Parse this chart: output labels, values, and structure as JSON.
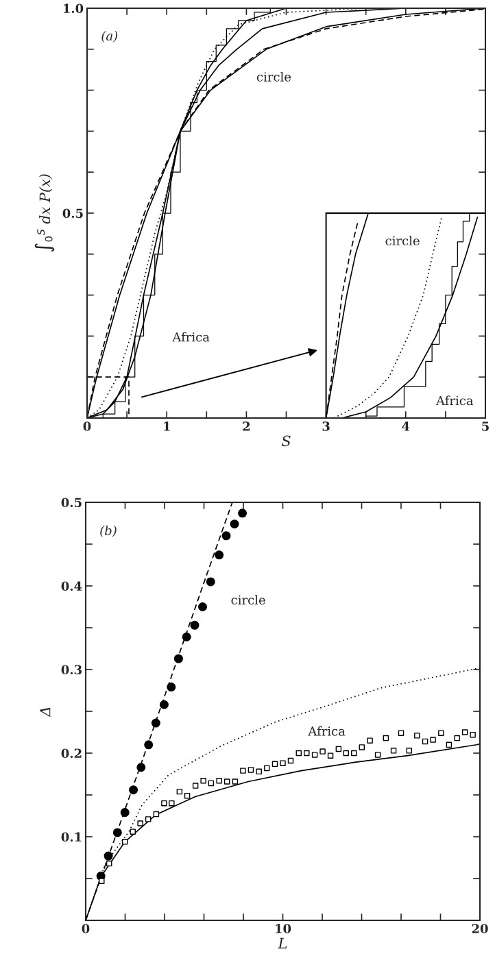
{
  "chart_data": [
    {
      "type": "line",
      "xlabel": "S",
      "ylabel": "∫$_{0}$$^{S}$ dx P(x)",
      "xlim": [
        0,
        5
      ],
      "ylim": [
        0,
        1.0
      ],
      "xticks": [
        0,
        {
          "value": 0.5,
          "label": null
        },
        1,
        {
          "value": 1.5,
          "label": null
        },
        2,
        {
          "value": 2.5,
          "label": null
        },
        3,
        {
          "value": 3.5,
          "label": null
        },
        4,
        {
          "value": 4.5,
          "label": null
        },
        5
      ],
      "yticks": [
        {
          "value": 0.1,
          "label": null
        },
        {
          "value": 0.2,
          "label": null
        },
        {
          "value": 0.3,
          "label": null
        },
        {
          "value": 0.4,
          "label": null
        },
        0.5,
        {
          "value": 0.6,
          "label": null
        },
        {
          "value": 0.7,
          "label": null
        },
        {
          "value": 0.8,
          "label": null
        },
        {
          "value": 0.9,
          "label": null
        },
        {
          "value": 1.0,
          "label": "1.0"
        }
      ],
      "grid": false,
      "legend": false,
      "annotations": [
        "(a)",
        "circle",
        "Africa",
        "circle",
        "Africa"
      ],
      "series": [
        {
          "line_style": "dashed",
          "color": "#000000",
          "x": [
            0,
            0.1,
            0.38,
            0.72,
            1.17,
            1.53,
            2.22,
            3.0,
            4.0,
            5.0
          ],
          "values": [
            0,
            0.1,
            0.3,
            0.5,
            0.7,
            0.8,
            0.9,
            0.95,
            0.98,
            0.998
          ]
        },
        {
          "line_style": "solid",
          "color": "#000000",
          "x": [
            0,
            0.12,
            0.41,
            0.75,
            1.17,
            1.55,
            2.25,
            3.0,
            4.0,
            5.0
          ],
          "values": [
            0,
            0.1,
            0.3,
            0.5,
            0.7,
            0.8,
            0.9,
            0.955,
            0.985,
            1.0
          ]
        },
        {
          "type": "step",
          "line_style": "solid",
          "color": "#000000",
          "x": [
            0,
            0.2,
            0.35,
            0.48,
            0.6,
            0.71,
            0.85,
            0.95,
            1.05,
            1.17,
            1.3,
            1.38,
            1.5,
            1.62,
            1.75,
            1.9,
            2.1,
            2.3
          ],
          "values": [
            0,
            0.01,
            0.04,
            0.1,
            0.2,
            0.3,
            0.4,
            0.5,
            0.6,
            0.7,
            0.77,
            0.8,
            0.87,
            0.91,
            0.95,
            0.97,
            0.99,
            1.0
          ]
        },
        {
          "line_style": "solid",
          "color": "#000000",
          "x": [
            0,
            0.2,
            0.35,
            0.5,
            0.71,
            0.95,
            1.17,
            1.38,
            1.55,
            1.7,
            2.0,
            2.5
          ],
          "values": [
            0,
            0.01,
            0.04,
            0.1,
            0.3,
            0.5,
            0.7,
            0.8,
            0.86,
            0.9,
            0.97,
            1.0
          ]
        },
        {
          "line_style": "solid",
          "color": "#000000",
          "x": [
            0,
            0.25,
            0.45,
            0.6,
            0.8,
            0.98,
            1.17,
            1.42,
            1.65,
            1.88,
            2.2,
            3.0,
            4.0
          ],
          "values": [
            0,
            0.02,
            0.07,
            0.15,
            0.3,
            0.5,
            0.7,
            0.8,
            0.86,
            0.9,
            0.95,
            0.99,
            1.0
          ]
        },
        {
          "line_style": "dotted",
          "color": "#000000",
          "x": [
            0,
            0.15,
            0.38,
            0.55,
            0.67,
            0.85,
            1.0,
            1.17,
            1.4,
            1.6,
            1.9,
            2.5,
            3.5
          ],
          "values": [
            0,
            0.02,
            0.1,
            0.2,
            0.3,
            0.45,
            0.55,
            0.7,
            0.82,
            0.9,
            0.96,
            0.99,
            1.0
          ]
        },
        {
          "line_style": "dashed",
          "color": "#000000",
          "x": [
            3.0,
            3.07,
            3.14,
            3.2,
            3.3,
            3.4
          ],
          "values": [
            0,
            0.1,
            0.2,
            0.3,
            0.4,
            0.48
          ]
        },
        {
          "line_style": "solid",
          "color": "#000000",
          "x": [
            3.0,
            3.09,
            3.17,
            3.26,
            3.37,
            3.45,
            3.53
          ],
          "values": [
            0,
            0.1,
            0.2,
            0.3,
            0.4,
            0.45,
            0.5
          ]
        },
        {
          "line_style": "dotted",
          "color": "#000000",
          "x": [
            3.1,
            3.4,
            3.6,
            3.79,
            4.03,
            4.22,
            4.34,
            4.45
          ],
          "values": [
            0,
            0.03,
            0.06,
            0.1,
            0.2,
            0.3,
            0.4,
            0.49
          ]
        },
        {
          "line_style": "solid",
          "color": "#000000",
          "x": [
            3.2,
            3.5,
            3.81,
            4.1,
            4.38,
            4.59,
            4.76,
            4.9
          ],
          "values": [
            0,
            0.015,
            0.05,
            0.1,
            0.2,
            0.3,
            0.4,
            0.49
          ]
        },
        {
          "type": "step",
          "line_style": "solid",
          "color": "#000000",
          "x": [
            3.5,
            3.64,
            3.98,
            4.25,
            4.33,
            4.42,
            4.5,
            4.58,
            4.65,
            4.72,
            4.8,
            4.9
          ],
          "values": [
            0.005,
            0.027,
            0.077,
            0.138,
            0.18,
            0.23,
            0.3,
            0.37,
            0.43,
            0.48,
            0.5,
            0.5
          ]
        }
      ]
    },
    {
      "type": "line",
      "xlabel": "L",
      "ylabel": "Δ",
      "xlim": [
        0,
        20
      ],
      "ylim": [
        0,
        0.5
      ],
      "xticks": [
        0,
        {
          "value": 2,
          "label": null
        },
        {
          "value": 4,
          "label": null
        },
        {
          "value": 6,
          "label": null
        },
        {
          "value": 8,
          "label": null
        },
        10,
        {
          "value": 12,
          "label": null
        },
        {
          "value": 14,
          "label": null
        },
        {
          "value": 16,
          "label": null
        },
        {
          "value": 18,
          "label": null
        },
        20
      ],
      "yticks": [
        {
          "value": 0.05,
          "label": null
        },
        0.1,
        {
          "value": 0.15,
          "label": null
        },
        0.2,
        {
          "value": 0.25,
          "label": null
        },
        0.3,
        {
          "value": 0.35,
          "label": null
        },
        0.4,
        {
          "value": 0.45,
          "label": null
        },
        0.5
      ],
      "grid": false,
      "legend": false,
      "annotations": [
        "(b)",
        "circle",
        "Africa"
      ],
      "series": [
        {
          "line_style": "dashed",
          "color": "#000000",
          "x": [
            0,
            1,
            2,
            3,
            4,
            5,
            6,
            7,
            7.44
          ],
          "values": [
            0,
            0.066,
            0.133,
            0.2,
            0.268,
            0.336,
            0.404,
            0.471,
            0.5
          ]
        },
        {
          "line_style": "dotted",
          "color": "#000000",
          "x": [
            0,
            1,
            2.19,
            2.86,
            4.21,
            6.9,
            9.6,
            12.29,
            14.98,
            17.5,
            20
          ],
          "values": [
            0,
            0.068,
            0.106,
            0.138,
            0.174,
            0.209,
            0.237,
            0.257,
            0.278,
            0.29,
            0.302
          ]
        },
        {
          "line_style": "solid",
          "color": "#000000",
          "x": [
            0,
            0.77,
            1.99,
            3.54,
            5.56,
            8.25,
            10.94,
            13.64,
            16.33,
            19.83,
            20
          ],
          "values": [
            0,
            0.052,
            0.094,
            0.126,
            0.148,
            0.166,
            0.179,
            0.189,
            0.197,
            0.21,
            0.211
          ]
        },
        {
          "type": "scatter",
          "marker": "circle",
          "color": "#000000",
          "x": [
            0.77,
            1.15,
            1.61,
            1.99,
            2.42,
            2.81,
            3.19,
            3.56,
            3.98,
            4.34,
            4.71,
            5.12,
            5.53,
            5.93,
            6.34,
            6.77,
            7.13,
            7.55,
            7.95
          ],
          "values": [
            0.053,
            0.077,
            0.105,
            0.129,
            0.156,
            0.183,
            0.21,
            0.236,
            0.258,
            0.279,
            0.313,
            0.339,
            0.353,
            0.375,
            0.405,
            0.437,
            0.46,
            0.474,
            0.487
          ]
        },
        {
          "type": "scatter",
          "marker": "square",
          "color": "#000000",
          "x": [
            0.81,
            1.19,
            1.99,
            2.39,
            2.77,
            3.17,
            3.58,
            3.98,
            4.36,
            4.76,
            5.15,
            5.57,
            5.97,
            6.36,
            6.77,
            7.17,
            7.58,
            7.98,
            8.38,
            8.79,
            9.19,
            9.6,
            10.0,
            10.4,
            10.81,
            11.21,
            11.62,
            12.02,
            12.42,
            12.83,
            13.21,
            13.61,
            14.01,
            14.42,
            14.82,
            15.23,
            15.62,
            16.0,
            16.41,
            16.81,
            17.22,
            17.62,
            18.03,
            18.43,
            18.84,
            19.24,
            19.64
          ],
          "values": [
            0.047,
            0.068,
            0.094,
            0.106,
            0.116,
            0.121,
            0.127,
            0.14,
            0.14,
            0.154,
            0.149,
            0.161,
            0.167,
            0.164,
            0.167,
            0.166,
            0.166,
            0.179,
            0.18,
            0.178,
            0.182,
            0.187,
            0.188,
            0.191,
            0.2,
            0.2,
            0.198,
            0.202,
            0.197,
            0.205,
            0.2,
            0.2,
            0.207,
            0.215,
            0.198,
            0.218,
            0.203,
            0.224,
            0.203,
            0.221,
            0.214,
            0.216,
            0.224,
            0.21,
            0.218,
            0.225,
            0.222
          ]
        }
      ]
    }
  ]
}
